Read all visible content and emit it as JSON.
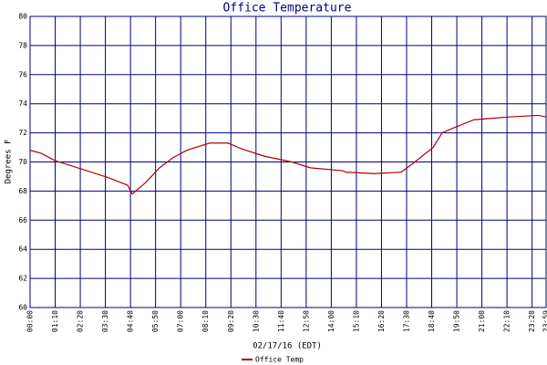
{
  "chart_data": {
    "type": "line",
    "title": "Office Temperature",
    "y_label": "Degrees F",
    "x_label": "02/17/16 (EDT)",
    "x": [
      0,
      31,
      69,
      145,
      221,
      272,
      285,
      323,
      361,
      399,
      437,
      501,
      552,
      590,
      653,
      730,
      781,
      870,
      882,
      959,
      1035,
      1073,
      1124,
      1149,
      1187,
      1238,
      1289,
      1340,
      1416,
      1439
    ],
    "series": [
      {
        "name": "Office Temp",
        "color": "#b00000",
        "values": [
          70.8,
          70.6,
          70.1,
          69.5,
          68.9,
          68.4,
          67.8,
          68.6,
          69.6,
          70.3,
          70.8,
          71.3,
          71.3,
          70.9,
          70.4,
          70.0,
          69.6,
          69.4,
          69.3,
          69.2,
          69.3,
          70.0,
          71.0,
          72.0,
          72.4,
          72.9,
          73.0,
          73.1,
          73.2,
          73.1
        ]
      }
    ],
    "xlim": [
      0,
      1439
    ],
    "xticks": [
      {
        "value": 0,
        "label": "00:00"
      },
      {
        "value": 70,
        "label": "01:10"
      },
      {
        "value": 140,
        "label": "02:20"
      },
      {
        "value": 210,
        "label": "03:30"
      },
      {
        "value": 280,
        "label": "04:40"
      },
      {
        "value": 350,
        "label": "05:50"
      },
      {
        "value": 420,
        "label": "07:00"
      },
      {
        "value": 490,
        "label": "08:10"
      },
      {
        "value": 560,
        "label": "09:20"
      },
      {
        "value": 630,
        "label": "10:30"
      },
      {
        "value": 700,
        "label": "11:40"
      },
      {
        "value": 770,
        "label": "12:50"
      },
      {
        "value": 840,
        "label": "14:00"
      },
      {
        "value": 910,
        "label": "15:10"
      },
      {
        "value": 980,
        "label": "16:20"
      },
      {
        "value": 1050,
        "label": "17:30"
      },
      {
        "value": 1120,
        "label": "18:40"
      },
      {
        "value": 1190,
        "label": "19:50"
      },
      {
        "value": 1260,
        "label": "21:00"
      },
      {
        "value": 1330,
        "label": "22:10"
      },
      {
        "value": 1400,
        "label": "23:20"
      },
      {
        "value": 1439,
        "label": "23:59"
      }
    ],
    "ylim": [
      60,
      80
    ],
    "yticks": [
      60,
      62,
      64,
      66,
      68,
      70,
      72,
      74,
      76,
      78,
      80
    ],
    "grid": true
  }
}
